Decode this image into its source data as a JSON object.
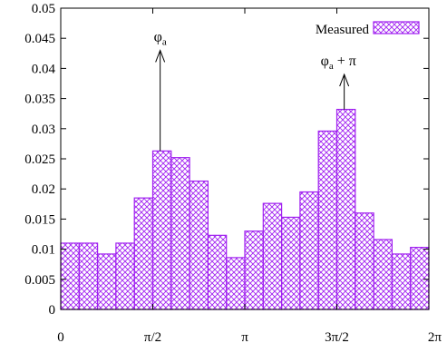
{
  "chart_data": {
    "type": "bar",
    "title": "",
    "xlabel": "",
    "ylabel": "",
    "xlim": [
      0,
      6.283185307
    ],
    "ylim": [
      0,
      0.05
    ],
    "x_ticks": [
      {
        "label": "0",
        "value": 0
      },
      {
        "label": "π/2",
        "value": 1.570796327
      },
      {
        "label": "π",
        "value": 3.141592654
      },
      {
        "label": "3π/2",
        "value": 4.71238898
      },
      {
        "label": "2π",
        "value": 6.283185307
      }
    ],
    "y_ticks": [
      "0",
      "0.005",
      "0.01",
      "0.015",
      "0.02",
      "0.025",
      "0.03",
      "0.035",
      "0.04",
      "0.045",
      "0.05"
    ],
    "y_tick_values": [
      0,
      0.005,
      0.01,
      0.015,
      0.02,
      0.025,
      0.03,
      0.035,
      0.04,
      0.045,
      0.05
    ],
    "grid": false,
    "legend_position": "top-right",
    "bin_count": 20,
    "series": [
      {
        "name": "Measured",
        "color": "#a020f0",
        "pattern": "crosshatch",
        "values": [
          0.011,
          0.011,
          0.0092,
          0.011,
          0.0185,
          0.0263,
          0.0252,
          0.0213,
          0.0123,
          0.0086,
          0.013,
          0.0176,
          0.0153,
          0.0195,
          0.0296,
          0.0332,
          0.016,
          0.0116,
          0.0092,
          0.0103
        ]
      }
    ],
    "annotations": [
      {
        "label": "φ",
        "subscript": "a",
        "suffix": "",
        "x_bin": 5,
        "arrow_from": 0.0263,
        "arrow_to": 0.043
      },
      {
        "label": "φ",
        "subscript": "a",
        "suffix": " + π",
        "x_bin": 15,
        "arrow_from": 0.0332,
        "arrow_to": 0.039
      }
    ]
  }
}
